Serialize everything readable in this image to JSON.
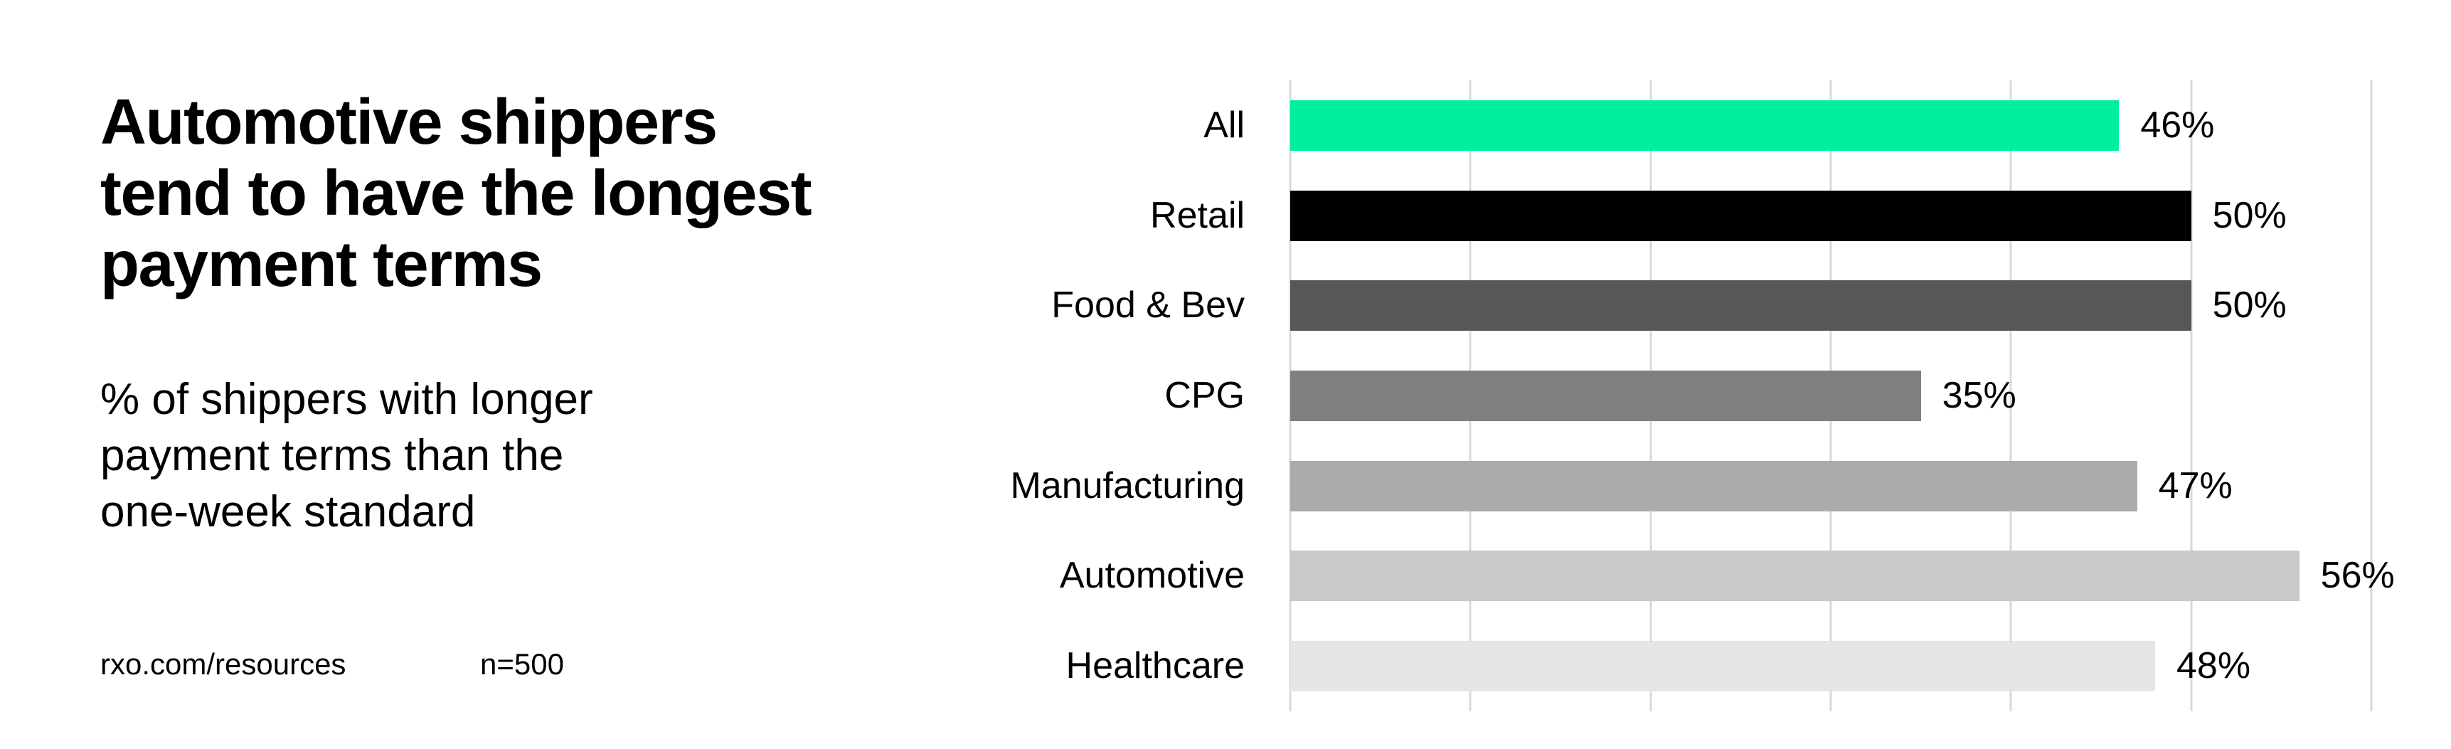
{
  "page": {
    "title_lines": [
      "Automotive shippers",
      "tend to have the longest",
      "payment terms"
    ],
    "subtitle_lines": [
      "% of shippers with longer",
      "payment terms than the",
      "one-week standard"
    ],
    "footer": {
      "source": "rxo.com/resources",
      "sample_size": "n=500"
    },
    "colors": {
      "background": "#FFFFFF",
      "accent_green": "#00EF9D",
      "text": "#000000",
      "gridline": "#D9D9D9"
    }
  },
  "chart_data": {
    "type": "bar",
    "orientation": "horizontal",
    "title": "Automotive shippers tend to have the longest payment terms",
    "subtitle": "% of shippers with longer payment terms than the one-week standard",
    "categories": [
      "All",
      "Retail",
      "Food & Bev",
      "CPG",
      "Manufacturing",
      "Automotive",
      "Healthcare"
    ],
    "values": [
      46,
      50,
      50,
      35,
      47,
      56,
      48
    ],
    "value_labels": [
      "46%",
      "50%",
      "50%",
      "35%",
      "47%",
      "56%",
      "48%"
    ],
    "bar_colors": [
      "#00EF9D",
      "#000000",
      "#575757",
      "#7F7F7F",
      "#ABABAB",
      "#C9C9C9",
      "#E5E5E5"
    ],
    "xlabel": "",
    "ylabel": "",
    "xlim": [
      0,
      60
    ],
    "gridline_step": 10,
    "grid": true,
    "gridline_color": "#D9D9D9",
    "legend": false,
    "source": "rxo.com/resources",
    "sample_size": "n=500"
  }
}
